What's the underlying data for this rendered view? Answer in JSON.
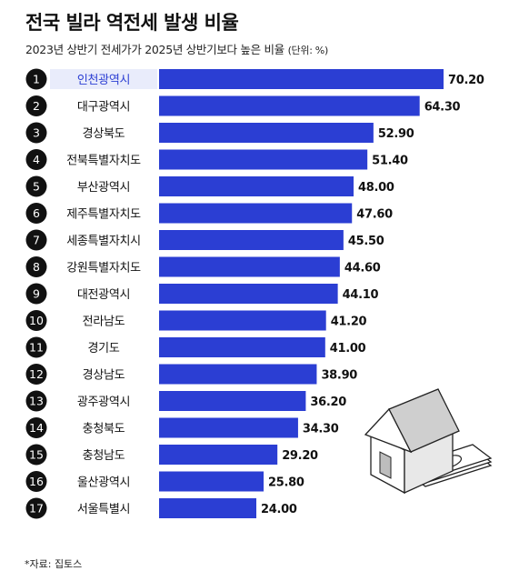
{
  "header": {
    "title": "전국 빌라 역전세 발생 비율",
    "subtitle": "2023년 상반기 전세가가 2025년 상반기보다 높은 비율",
    "unit_note": "(단위: %)"
  },
  "source": "*자료: 집토스",
  "colors": {
    "bar": "#2b3ed3",
    "first_label_bg": "#e9ecfb",
    "first_label_text": "#2b3ed3",
    "rank_circle": "#111111"
  },
  "chart_data": {
    "type": "bar",
    "orientation": "horizontal",
    "title": "전국 빌라 역전세 발생 비율",
    "subtitle": "2023년 상반기 전세가가 2025년 상반기보다 높은 비율",
    "unit": "%",
    "ranks": [
      "1",
      "2",
      "3",
      "4",
      "5",
      "6",
      "7",
      "8",
      "9",
      "10",
      "11",
      "12",
      "13",
      "14",
      "15",
      "16",
      "17"
    ],
    "categories": [
      "인천광역시",
      "대구광역시",
      "경상북도",
      "전북특별자치도",
      "부산광역시",
      "제주특별자치도",
      "세종특별자치시",
      "강원특별자치도",
      "대전광역시",
      "전라남도",
      "경기도",
      "경상남도",
      "광주광역시",
      "충청북도",
      "충청남도",
      "울산광역시",
      "서울특별시"
    ],
    "values": [
      70.2,
      64.3,
      52.9,
      51.4,
      48.0,
      47.6,
      45.5,
      44.6,
      44.1,
      41.2,
      41.0,
      38.9,
      36.2,
      34.3,
      29.2,
      25.8,
      24.0
    ],
    "value_labels": [
      "70.20",
      "64.30",
      "52.90",
      "51.40",
      "48.00",
      "47.60",
      "45.50",
      "44.60",
      "44.10",
      "41.20",
      "41.00",
      "38.90",
      "36.20",
      "34.30",
      "29.20",
      "25.80",
      "24.00"
    ],
    "grid": false,
    "legend": "none"
  }
}
